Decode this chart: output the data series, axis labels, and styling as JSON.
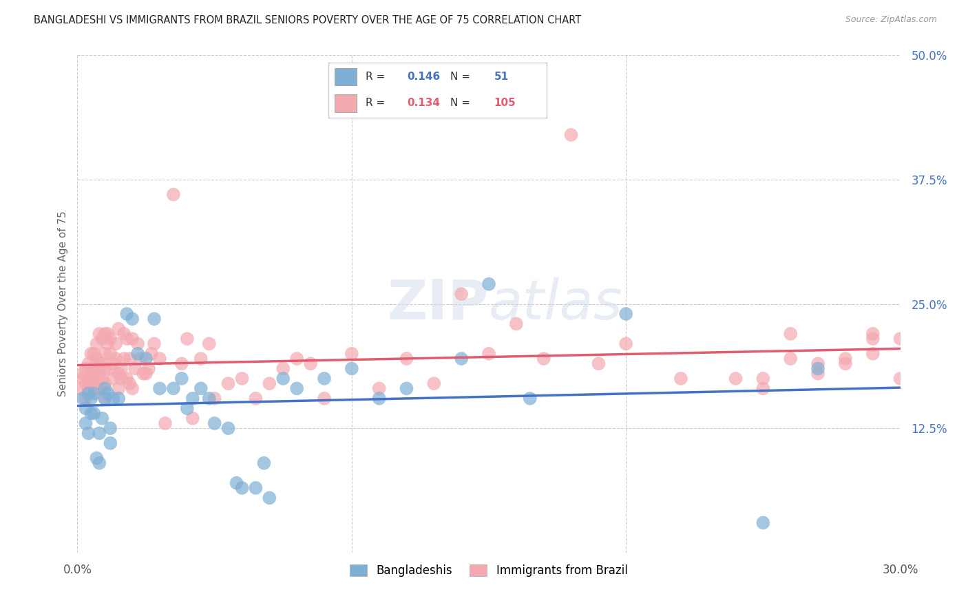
{
  "title": "BANGLADESHI VS IMMIGRANTS FROM BRAZIL SENIORS POVERTY OVER THE AGE OF 75 CORRELATION CHART",
  "source": "Source: ZipAtlas.com",
  "ylabel": "Seniors Poverty Over the Age of 75",
  "xlim": [
    0.0,
    0.3
  ],
  "ylim": [
    0.0,
    0.5
  ],
  "yticks_right": [
    0.5,
    0.375,
    0.25,
    0.125,
    0.0
  ],
  "ytick_labels_right": [
    "50.0%",
    "37.5%",
    "25.0%",
    "12.5%",
    ""
  ],
  "bangladeshi_color": "#7EB0D5",
  "brazil_color": "#F4A8B0",
  "bangladeshi_line_color": "#4472C4",
  "brazil_line_color": "#E05C6E",
  "bangladeshi_R": "0.146",
  "bangladeshi_N": "51",
  "brazil_R": "0.134",
  "brazil_N": "105",
  "legend_label_1": "Bangladeshis",
  "legend_label_2": "Immigrants from Brazil",
  "watermark": "ZIPatlas",
  "background_color": "#ffffff",
  "grid_color": "#cccccc",
  "blue_text_color": "#4472C4",
  "pink_text_color": "#E05C6E",
  "bangladeshi_scatter_x": [
    0.002,
    0.003,
    0.003,
    0.004,
    0.004,
    0.005,
    0.005,
    0.006,
    0.006,
    0.007,
    0.008,
    0.008,
    0.009,
    0.01,
    0.01,
    0.011,
    0.012,
    0.012,
    0.013,
    0.015,
    0.018,
    0.02,
    0.022,
    0.025,
    0.028,
    0.03,
    0.035,
    0.038,
    0.04,
    0.042,
    0.045,
    0.048,
    0.05,
    0.055,
    0.058,
    0.06,
    0.065,
    0.068,
    0.07,
    0.075,
    0.08,
    0.09,
    0.1,
    0.11,
    0.12,
    0.14,
    0.15,
    0.165,
    0.2,
    0.25,
    0.27
  ],
  "bangladeshi_scatter_y": [
    0.155,
    0.13,
    0.145,
    0.16,
    0.12,
    0.155,
    0.14,
    0.16,
    0.14,
    0.095,
    0.09,
    0.12,
    0.135,
    0.155,
    0.165,
    0.16,
    0.11,
    0.125,
    0.155,
    0.155,
    0.24,
    0.235,
    0.2,
    0.195,
    0.235,
    0.165,
    0.165,
    0.175,
    0.145,
    0.155,
    0.165,
    0.155,
    0.13,
    0.125,
    0.07,
    0.065,
    0.065,
    0.09,
    0.055,
    0.175,
    0.165,
    0.175,
    0.185,
    0.155,
    0.165,
    0.195,
    0.27,
    0.155,
    0.24,
    0.03,
    0.185
  ],
  "brazil_scatter_x": [
    0.001,
    0.002,
    0.002,
    0.003,
    0.003,
    0.003,
    0.004,
    0.004,
    0.004,
    0.005,
    0.005,
    0.005,
    0.005,
    0.006,
    0.006,
    0.006,
    0.007,
    0.007,
    0.007,
    0.007,
    0.008,
    0.008,
    0.008,
    0.008,
    0.009,
    0.009,
    0.009,
    0.01,
    0.01,
    0.01,
    0.01,
    0.01,
    0.011,
    0.011,
    0.012,
    0.012,
    0.012,
    0.013,
    0.013,
    0.014,
    0.014,
    0.015,
    0.015,
    0.015,
    0.016,
    0.016,
    0.017,
    0.017,
    0.018,
    0.018,
    0.019,
    0.019,
    0.02,
    0.02,
    0.021,
    0.022,
    0.023,
    0.024,
    0.025,
    0.026,
    0.027,
    0.028,
    0.03,
    0.032,
    0.035,
    0.038,
    0.04,
    0.042,
    0.045,
    0.048,
    0.05,
    0.055,
    0.06,
    0.065,
    0.07,
    0.075,
    0.08,
    0.085,
    0.09,
    0.1,
    0.11,
    0.12,
    0.13,
    0.14,
    0.15,
    0.16,
    0.17,
    0.18,
    0.19,
    0.2,
    0.22,
    0.24,
    0.25,
    0.26,
    0.27,
    0.28,
    0.29,
    0.29,
    0.3,
    0.3,
    0.25,
    0.26,
    0.27,
    0.28,
    0.29
  ],
  "brazil_scatter_y": [
    0.165,
    0.175,
    0.18,
    0.155,
    0.17,
    0.185,
    0.19,
    0.175,
    0.165,
    0.185,
    0.2,
    0.17,
    0.175,
    0.2,
    0.18,
    0.175,
    0.195,
    0.185,
    0.165,
    0.21,
    0.19,
    0.22,
    0.18,
    0.165,
    0.215,
    0.175,
    0.19,
    0.185,
    0.17,
    0.22,
    0.2,
    0.155,
    0.21,
    0.22,
    0.185,
    0.2,
    0.215,
    0.19,
    0.175,
    0.195,
    0.21,
    0.18,
    0.165,
    0.225,
    0.175,
    0.185,
    0.22,
    0.195,
    0.215,
    0.175,
    0.195,
    0.17,
    0.165,
    0.215,
    0.185,
    0.21,
    0.195,
    0.18,
    0.18,
    0.185,
    0.2,
    0.21,
    0.195,
    0.13,
    0.36,
    0.19,
    0.215,
    0.135,
    0.195,
    0.21,
    0.155,
    0.17,
    0.175,
    0.155,
    0.17,
    0.185,
    0.195,
    0.19,
    0.155,
    0.2,
    0.165,
    0.195,
    0.17,
    0.26,
    0.2,
    0.23,
    0.195,
    0.42,
    0.19,
    0.21,
    0.175,
    0.175,
    0.165,
    0.22,
    0.19,
    0.19,
    0.22,
    0.2,
    0.215,
    0.175,
    0.175,
    0.195,
    0.18,
    0.195,
    0.215
  ]
}
